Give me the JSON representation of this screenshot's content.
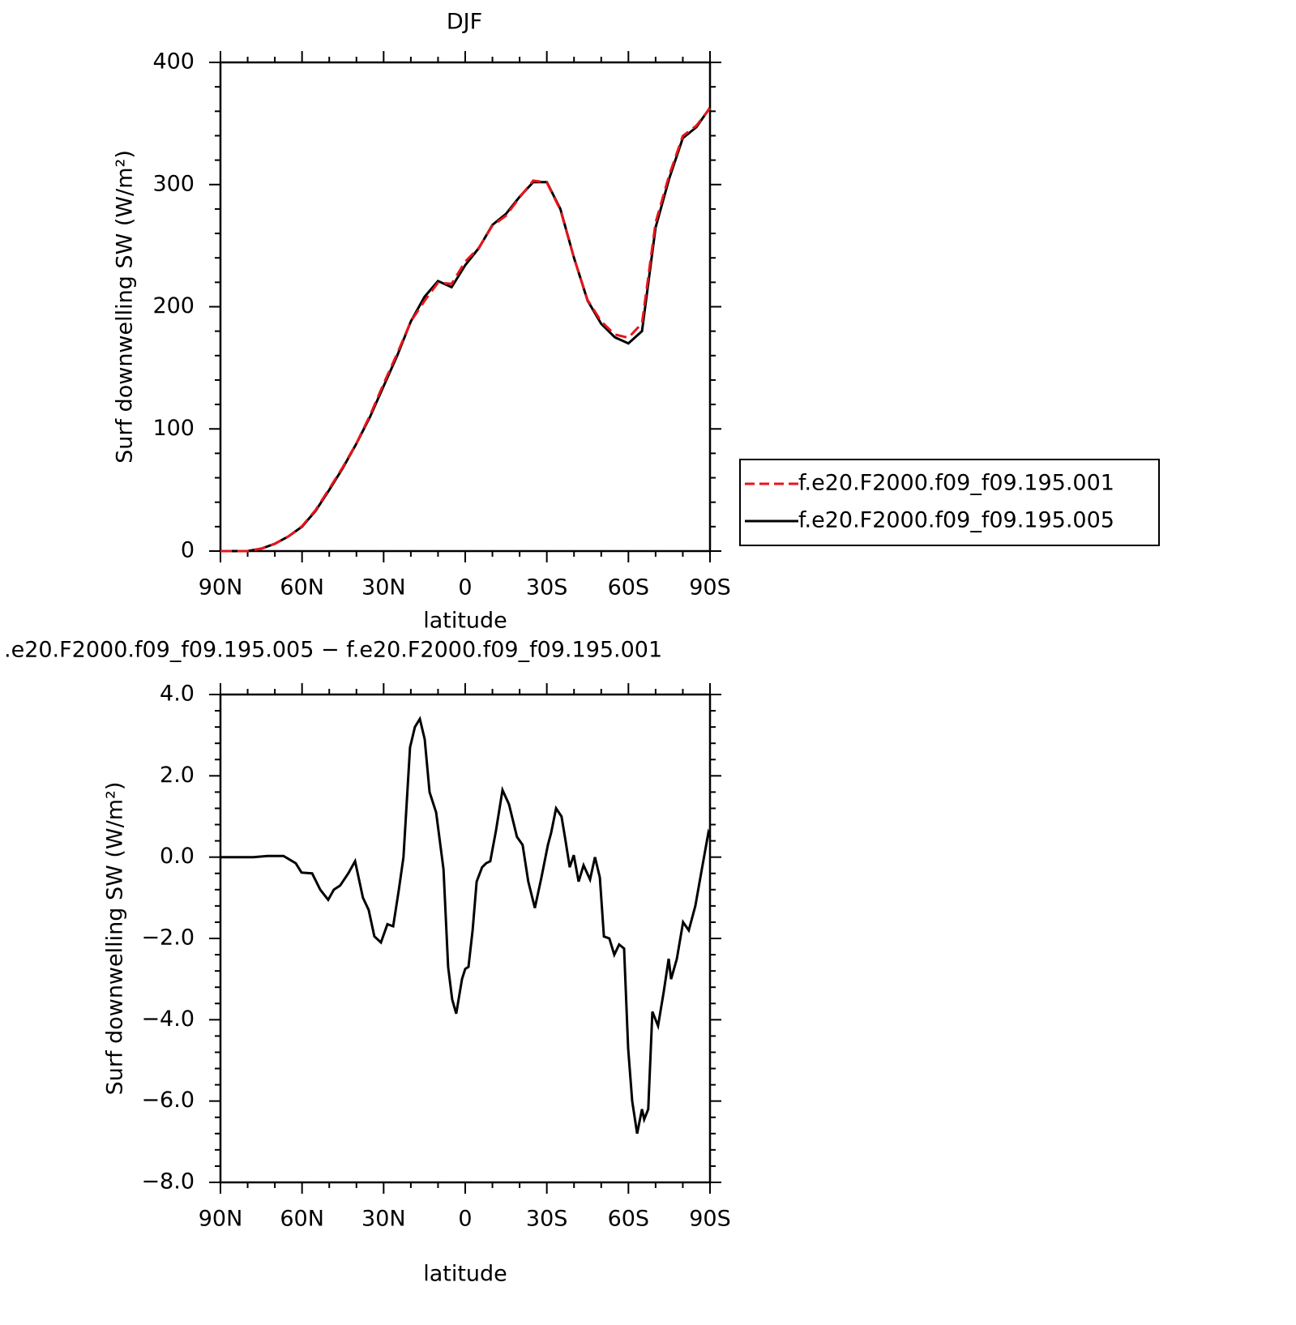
{
  "chart_data": [
    {
      "type": "line",
      "title": "DJF",
      "x_label": "latitude",
      "y_label": "Surf downwelling SW (W/m²)",
      "x": [
        90,
        85,
        80,
        75,
        70,
        65,
        60,
        55,
        50,
        45,
        40,
        35,
        30,
        25,
        20,
        15,
        10,
        5,
        0,
        -5,
        -10,
        -15,
        -20,
        -25,
        -30,
        -35,
        -40,
        -45,
        -50,
        -55,
        -60,
        -65,
        -70,
        -75,
        -80,
        -85,
        -90
      ],
      "series": [
        {
          "name": "f.e20.F2000.f09_f09.195.001",
          "color": "#e8141b",
          "dash": true,
          "values": [
            0,
            0,
            0,
            2,
            6,
            12,
            20.4,
            33.6,
            51,
            68.7,
            88.3,
            111.2,
            137,
            161.7,
            188,
            204.7,
            219.7,
            218.7,
            237,
            248.3,
            266.4,
            274.5,
            289.5,
            303.2,
            301.7,
            279.2,
            240,
            205.5,
            187.9,
            177.3,
            174.6,
            186.5,
            269,
            307.7,
            339.8,
            348.2,
            362.5
          ]
        },
        {
          "name": "f.e20.F2000.f09_f09.195.005",
          "color": "#000000",
          "dash": false,
          "values": [
            0,
            0,
            0,
            2,
            6,
            12,
            20,
            33,
            50,
            68,
            88,
            110,
            135,
            160,
            188,
            208,
            221,
            216,
            234,
            248,
            267,
            276,
            290,
            302,
            302,
            280,
            240,
            205,
            186,
            175,
            170,
            180,
            265,
            305,
            338,
            347,
            363
          ]
        }
      ],
      "xlim": [
        90,
        -90
      ],
      "xticks": [
        {
          "value": 90,
          "label": "90N"
        },
        {
          "value": 60,
          "label": "60N"
        },
        {
          "value": 30,
          "label": "30N"
        },
        0,
        {
          "value": -30,
          "label": "30S"
        },
        {
          "value": -60,
          "label": "60S"
        },
        {
          "value": -90,
          "label": "90S"
        }
      ],
      "x_minor_ticks": [
        80,
        70,
        50,
        40,
        20,
        10,
        -10,
        -20,
        -40,
        -50,
        -70,
        -80
      ],
      "ylim": [
        0,
        400
      ],
      "yticks": [
        0,
        100,
        200,
        300,
        400
      ],
      "y_minor_ticks": [
        20,
        40,
        60,
        80,
        120,
        140,
        160,
        180,
        220,
        240,
        260,
        280,
        320,
        340,
        360,
        380
      ],
      "legend": "right"
    },
    {
      "type": "line",
      "title": ".e20.F2000.f09_f09.195.005 − f.e20.F2000.f09_f09.195.001",
      "x_label": "latitude",
      "y_label": "Surf downwelling SW (W/m²)",
      "x": [
        90,
        78,
        72.7,
        66.8,
        62.3,
        60.2,
        56.3,
        53.3,
        50.4,
        48.3,
        46,
        43,
        40.5,
        37.6,
        35.5,
        33.4,
        31,
        28.6,
        26.5,
        24.4,
        22.7,
        20.3,
        18.5,
        16.7,
        14.9,
        13.1,
        10.7,
        8,
        6.3,
        4.8,
        3.3,
        1.2,
        0,
        -1.2,
        -2.7,
        -4.2,
        -6.2,
        -7.7,
        -9.2,
        -11.3,
        -13.7,
        -16.1,
        -19,
        -21.1,
        -23.2,
        -25.6,
        -28,
        -30.4,
        -31.6,
        -33.4,
        -35.4,
        -36.9,
        -38.4,
        -39.9,
        -41.7,
        -43.5,
        -45.9,
        -47.7,
        -49.5,
        -51,
        -53,
        -54.8,
        -56.6,
        -58.4,
        -59.9,
        -61.4,
        -63.2,
        -65,
        -65.8,
        -67.3,
        -68.8,
        -70.9,
        -73,
        -74.8,
        -75.7,
        -77.8,
        -80.1,
        -82.2,
        -84.6,
        -87,
        -89.4,
        -90
      ],
      "color": "#000000",
      "values": [
        0,
        0,
        0.03,
        0.03,
        -0.15,
        -0.38,
        -0.4,
        -0.8,
        -1.05,
        -0.8,
        -0.7,
        -0.4,
        -0.1,
        -1.0,
        -1.3,
        -1.95,
        -2.1,
        -1.65,
        -1.7,
        -0.8,
        0,
        2.7,
        3.2,
        3.4,
        2.9,
        1.6,
        1.1,
        -0.3,
        -2.7,
        -3.5,
        -3.85,
        -3.0,
        -2.75,
        -2.7,
        -1.8,
        -0.6,
        -0.25,
        -0.15,
        -0.1,
        0.65,
        1.65,
        1.3,
        0.5,
        0.3,
        -0.6,
        -1.25,
        -0.5,
        0.3,
        0.6,
        1.2,
        1.0,
        0.4,
        -0.25,
        0.05,
        -0.6,
        -0.2,
        -0.55,
        0,
        -0.5,
        -1.95,
        -2.0,
        -2.4,
        -2.15,
        -2.25,
        -4.7,
        -6.0,
        -6.8,
        -6.2,
        -6.45,
        -6.2,
        -3.8,
        -4.15,
        -3.3,
        -2.5,
        -3.0,
        -2.5,
        -1.6,
        -1.8,
        -1.2,
        -0.3,
        0.6,
        0.5
      ],
      "xlim": [
        90,
        -90
      ],
      "xticks": [
        {
          "value": 90,
          "label": "90N"
        },
        {
          "value": 60,
          "label": "60N"
        },
        {
          "value": 30,
          "label": "30N"
        },
        0,
        {
          "value": -30,
          "label": "30S"
        },
        {
          "value": -60,
          "label": "60S"
        },
        {
          "value": -90,
          "label": "90S"
        }
      ],
      "x_minor_ticks": [
        80,
        70,
        50,
        40,
        20,
        10,
        -10,
        -20,
        -40,
        -50,
        -70,
        -80
      ],
      "ylim": [
        -8,
        4
      ],
      "yticks": [
        {
          "value": -8,
          "label": "−8.0"
        },
        {
          "value": -6,
          "label": "−6.0"
        },
        {
          "value": -4,
          "label": "−4.0"
        },
        {
          "value": -2,
          "label": "−2.0"
        },
        {
          "value": 0,
          "label": "0.0"
        },
        {
          "value": 2,
          "label": "2.0"
        },
        {
          "value": 4,
          "label": "4.0"
        }
      ],
      "y_minor_ticks": [
        -7.6,
        -7.2,
        -6.8,
        -6.4,
        -5.6,
        -5.2,
        -4.8,
        -4.4,
        -3.6,
        -3.2,
        -2.8,
        -2.4,
        -1.6,
        -1.2,
        -0.8,
        -0.4,
        0.4,
        0.8,
        1.2,
        1.6,
        2.4,
        2.8,
        3.2,
        3.6
      ]
    }
  ]
}
